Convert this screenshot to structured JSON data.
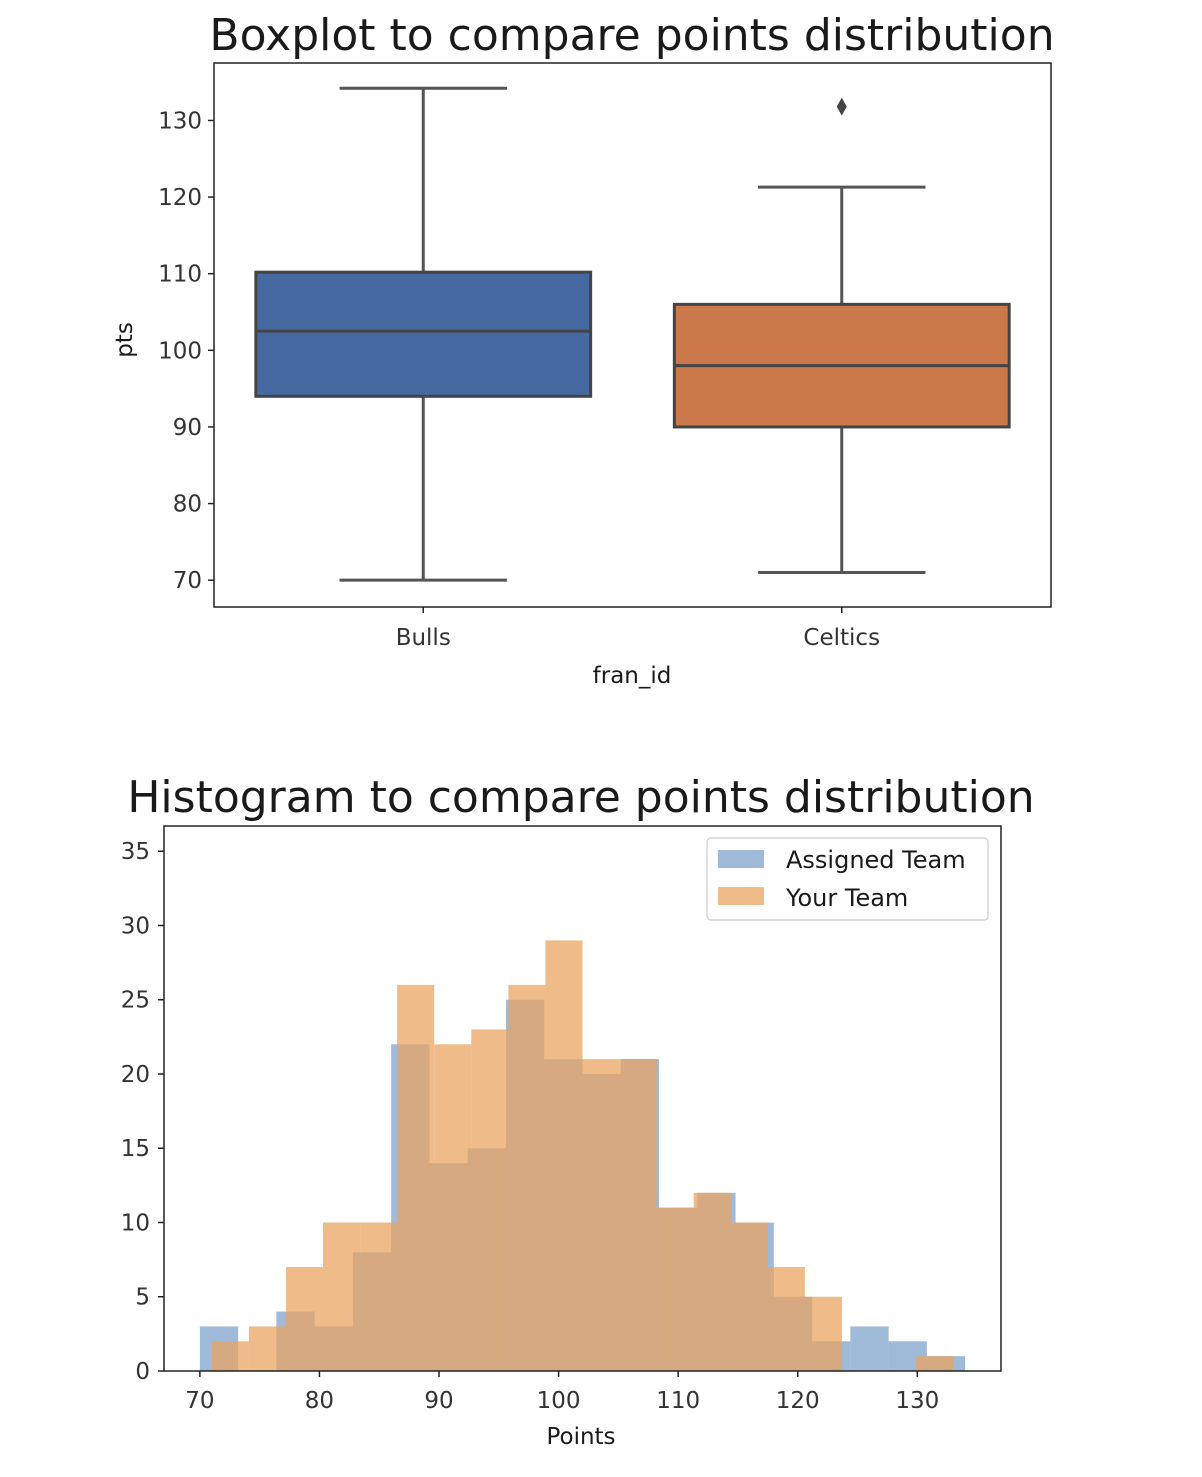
{
  "chart_data": [
    {
      "type": "box",
      "title": "Boxplot to compare points distribution",
      "xlabel": "fran_id",
      "ylabel": "pts",
      "ylim": [
        66.5,
        137.5
      ],
      "yticks": [
        70,
        80,
        90,
        100,
        110,
        120,
        130
      ],
      "grid": false,
      "categories": [
        "Bulls",
        "Celtics"
      ],
      "series": [
        {
          "whisker_low": 70,
          "q1": 94,
          "median": 102.5,
          "q3": 110.2,
          "whisker_high": 134.2,
          "outliers": [],
          "color": "#4c72b0"
        },
        {
          "whisker_low": 71,
          "q1": 90,
          "median": 98,
          "q3": 106,
          "whisker_high": 121.3,
          "outliers": [
            131.8
          ],
          "color": "#dd8452"
        }
      ]
    },
    {
      "type": "histogram",
      "title": "Histogram to compare points distribution",
      "xlabel": "Points",
      "ylabel": "",
      "xlim": [
        67,
        137
      ],
      "ylim": [
        0,
        36.7
      ],
      "xticks": [
        70,
        80,
        90,
        100,
        110,
        120,
        130
      ],
      "yticks": [
        0,
        5,
        10,
        15,
        20,
        25,
        30,
        35
      ],
      "grid": false,
      "legend": "top-right",
      "series": [
        {
          "name": "Assigned Team",
          "color": "#6b93c4",
          "edges": [
            70,
            73.2,
            76.4,
            79.6,
            82.8,
            86.0,
            89.2,
            92.4,
            95.6,
            98.8,
            102.0,
            105.2,
            108.4,
            111.6,
            114.8,
            118.0,
            121.2,
            124.4,
            127.6,
            130.8,
            134.0
          ],
          "counts": [
            3,
            0,
            4,
            3,
            8,
            22,
            14,
            15,
            25,
            21,
            20,
            21,
            11,
            12,
            10,
            5,
            2,
            3,
            2,
            1
          ]
        },
        {
          "name": "Your Team",
          "color": "#e8a461",
          "edges": [
            71,
            74.1,
            77.2,
            80.3,
            83.4,
            86.5,
            89.6,
            92.7,
            95.8,
            98.9,
            102.0,
            105.1,
            108.2,
            111.3,
            114.4,
            117.5,
            120.6,
            123.7,
            126.8,
            129.9,
            133.0
          ],
          "counts": [
            2,
            3,
            7,
            10,
            10,
            26,
            22,
            23,
            26,
            29,
            21,
            21,
            11,
            12,
            10,
            7,
            5,
            0,
            0,
            1
          ]
        }
      ]
    }
  ]
}
